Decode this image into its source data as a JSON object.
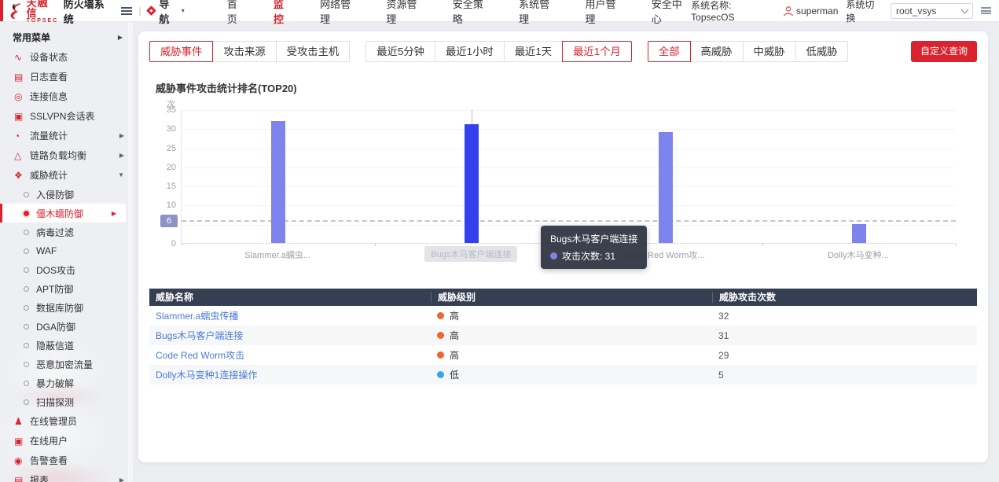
{
  "colors": {
    "accent": "#d9232e",
    "bar": "#7d84ee",
    "bar_highlight": "#3340f0",
    "link": "#4a7bd6",
    "severity_high": "#f0642f",
    "severity_low": "#36a3f7",
    "table_header_bg": "#353f52"
  },
  "topbar": {
    "brand_name": "天融信",
    "brand_sub": "TOPSEC",
    "product": "防火墙系统",
    "nav_toggle_label": "导航",
    "nav": [
      {
        "label": "首页",
        "active": false
      },
      {
        "label": "监控",
        "active": true
      },
      {
        "label": "网络管理",
        "active": false
      },
      {
        "label": "资源管理",
        "active": false
      },
      {
        "label": "安全策略",
        "active": false
      },
      {
        "label": "系统管理",
        "active": false
      },
      {
        "label": "用户管理",
        "active": false
      },
      {
        "label": "安全中心",
        "active": false
      }
    ],
    "system_name": "系统名称: TopsecOS",
    "username": "superman",
    "switch_label": "系统切换",
    "vsys_value": "root_vsys"
  },
  "sidebar": {
    "title": "常用菜单",
    "items": [
      {
        "label": "设备状态",
        "icon": "device-status-icon",
        "glyph": "∿",
        "arrow": ""
      },
      {
        "label": "日志查看",
        "icon": "log-view-icon",
        "glyph": "▤",
        "arrow": ""
      },
      {
        "label": "连接信息",
        "icon": "connection-info-icon",
        "glyph": "◎",
        "arrow": ""
      },
      {
        "label": "SSLVPN会话表",
        "icon": "sslvpn-session-icon",
        "glyph": "▣",
        "arrow": ""
      },
      {
        "label": "流量统计",
        "icon": "traffic-stats-icon",
        "glyph": "◔",
        "arrow": "right"
      },
      {
        "label": "链路负载均衡",
        "icon": "link-load-balance-icon",
        "glyph": "△",
        "arrow": "right"
      },
      {
        "label": "威胁统计",
        "icon": "threat-stats-icon",
        "glyph": "❖",
        "arrow": "down"
      }
    ],
    "threat_subitems": [
      {
        "label": "入侵防御",
        "selected": false
      },
      {
        "label": "僵木蠕防御",
        "selected": true
      },
      {
        "label": "病毒过滤",
        "selected": false
      },
      {
        "label": "WAF",
        "selected": false
      },
      {
        "label": "DOS攻击",
        "selected": false
      },
      {
        "label": "APT防御",
        "selected": false
      },
      {
        "label": "数据库防御",
        "selected": false
      },
      {
        "label": "DGA防御",
        "selected": false
      },
      {
        "label": "隐蔽信道",
        "selected": false
      },
      {
        "label": "恶意加密流量",
        "selected": false
      },
      {
        "label": "暴力破解",
        "selected": false
      },
      {
        "label": "扫描探测",
        "selected": false
      }
    ],
    "bottom_items": [
      {
        "label": "在线管理员",
        "icon": "online-admin-icon",
        "glyph": "♟",
        "arrow": ""
      },
      {
        "label": "在线用户",
        "icon": "online-user-icon",
        "glyph": "▣",
        "arrow": ""
      },
      {
        "label": "告警查看",
        "icon": "alarm-view-icon",
        "glyph": "◉",
        "arrow": ""
      },
      {
        "label": "报表",
        "icon": "report-icon",
        "glyph": "▤",
        "arrow": "right"
      }
    ]
  },
  "filters": {
    "type_tabs": [
      {
        "label": "威胁事件",
        "selected": true
      },
      {
        "label": "攻击来源",
        "selected": false
      },
      {
        "label": "受攻击主机",
        "selected": false
      }
    ],
    "time_tabs": [
      {
        "label": "最近5分钟",
        "selected": false
      },
      {
        "label": "最近1小时",
        "selected": false
      },
      {
        "label": "最近1天",
        "selected": false
      },
      {
        "label": "最近1个月",
        "selected": true
      }
    ],
    "level_tabs": [
      {
        "label": "全部",
        "selected": true
      },
      {
        "label": "高威胁",
        "selected": false
      },
      {
        "label": "中威胁",
        "selected": false
      },
      {
        "label": "低威胁",
        "selected": false
      }
    ],
    "query_button": "自定义查询"
  },
  "chart_data": {
    "type": "bar",
    "title": "威胁事件攻击统计排名(TOP20)",
    "unit": "次",
    "categories": [
      "Slammer.a蠕虫传播",
      "Bugs木马客户端连接",
      "Code Red Worm攻击",
      "Dolly木马变种1连接操作"
    ],
    "tick_labels": [
      "Slammer.a蠕虫...",
      "Bugs木马客户端连接",
      "Code Red Worm攻...",
      "Dolly木马变种..."
    ],
    "values": [
      32,
      31,
      29,
      5
    ],
    "ylim": [
      0,
      35
    ],
    "y_ticks": [
      0,
      10,
      15,
      20,
      25,
      30,
      35
    ],
    "grid_step": 5,
    "marker_value": 6,
    "highlight_index": 1,
    "legend_position": "none",
    "tooltip": {
      "title": "Bugs木马客户端连接",
      "label": "攻击次数",
      "value": 31
    }
  },
  "table": {
    "headers": [
      "威胁名称",
      "威胁级别",
      "威胁攻击次数"
    ],
    "rows": [
      {
        "name": "Slammer.a蠕虫传播",
        "level": "高",
        "severity": "high",
        "count": "32"
      },
      {
        "name": "Bugs木马客户端连接",
        "level": "高",
        "severity": "high",
        "count": "31"
      },
      {
        "name": "Code Red Worm攻击",
        "level": "高",
        "severity": "high",
        "count": "29"
      },
      {
        "name": "Dolly木马变种1连接操作",
        "level": "低",
        "severity": "low",
        "count": "5"
      }
    ]
  }
}
